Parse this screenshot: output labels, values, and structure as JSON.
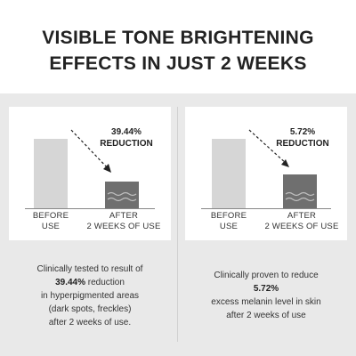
{
  "title": {
    "line1": "VISIBLE TONE BRIGHTENING",
    "line2": "EFFECTS IN JUST 2 WEEKS"
  },
  "panels": [
    {
      "reduction": {
        "value": "39.44%",
        "word": "REDUCTION"
      },
      "before_label": {
        "line1": "BEFORE",
        "line2": "USE"
      },
      "after_label": {
        "line1": "AFTER",
        "line2": "2 WEEKS OF USE"
      },
      "after_level": 0.39,
      "description": {
        "line1": "Clinically tested to result of",
        "line2_bold": "39.44%",
        "line2_rest": " reduction",
        "line3": "in hyperpigmented areas",
        "line4": "(dark spots, freckles)",
        "line5": "after 2 weeks of use."
      }
    },
    {
      "reduction": {
        "value": "5.72%",
        "word": "REDUCTION"
      },
      "before_label": {
        "line1": "BEFORE",
        "line2": "USE"
      },
      "after_label": {
        "line1": "AFTER",
        "line2": "2 WEEKS OF USE"
      },
      "after_level": 0.5,
      "description": {
        "line1": "Clinically proven to reduce",
        "line2_bold": "5.72%",
        "line3": "excess melanin level in skin",
        "line4": "after 2 weeks of use"
      }
    }
  ],
  "colors": {
    "before_bar": "#d6d6d6",
    "after_bar": "#6f6f6f",
    "background_band": "#e9e9e9"
  }
}
